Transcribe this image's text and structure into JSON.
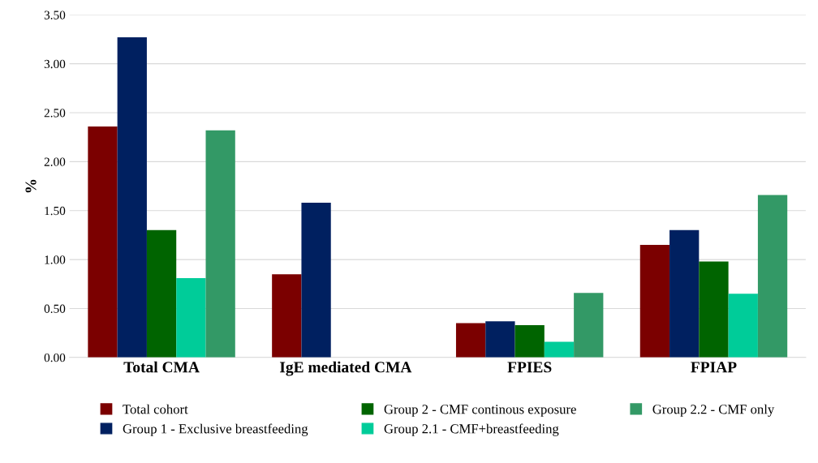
{
  "chart_data": {
    "type": "bar",
    "ylabel": "%",
    "categories": [
      "Total CMA",
      "IgE mediated CMA",
      "FPIES",
      "FPIAP"
    ],
    "series": [
      {
        "name": "Total cohort",
        "color": "#7b0000",
        "values": [
          2.36,
          0.85,
          0.35,
          1.15
        ]
      },
      {
        "name": "Group 1 - Exclusive breastfeeding",
        "color": "#002060",
        "values": [
          3.27,
          1.58,
          0.37,
          1.3
        ]
      },
      {
        "name": "Group 2 - CMF continous exposure",
        "color": "#006400",
        "values": [
          1.3,
          0,
          0.33,
          0.98
        ]
      },
      {
        "name": "Group 2.1 - CMF+breastfeeding",
        "color": "#00cc99",
        "values": [
          0.81,
          0,
          0.16,
          0.65
        ]
      },
      {
        "name": "Group 2.2 - CMF only",
        "color": "#339966",
        "values": [
          2.32,
          0,
          0.66,
          1.66
        ]
      }
    ],
    "ylim": [
      0,
      3.5
    ],
    "yticks": [
      {
        "value": 0,
        "label": "0.00"
      },
      {
        "value": 0.5,
        "label": "0.50"
      },
      {
        "value": 1,
        "label": "1.00"
      },
      {
        "value": 1.5,
        "label": "1.50"
      },
      {
        "value": 2,
        "label": "2.00"
      },
      {
        "value": 2.5,
        "label": "2.50"
      },
      {
        "value": 3,
        "label": "3.00"
      },
      {
        "value": 3.5,
        "label": "3.50"
      }
    ],
    "grid": "y",
    "legend": "bottom"
  }
}
